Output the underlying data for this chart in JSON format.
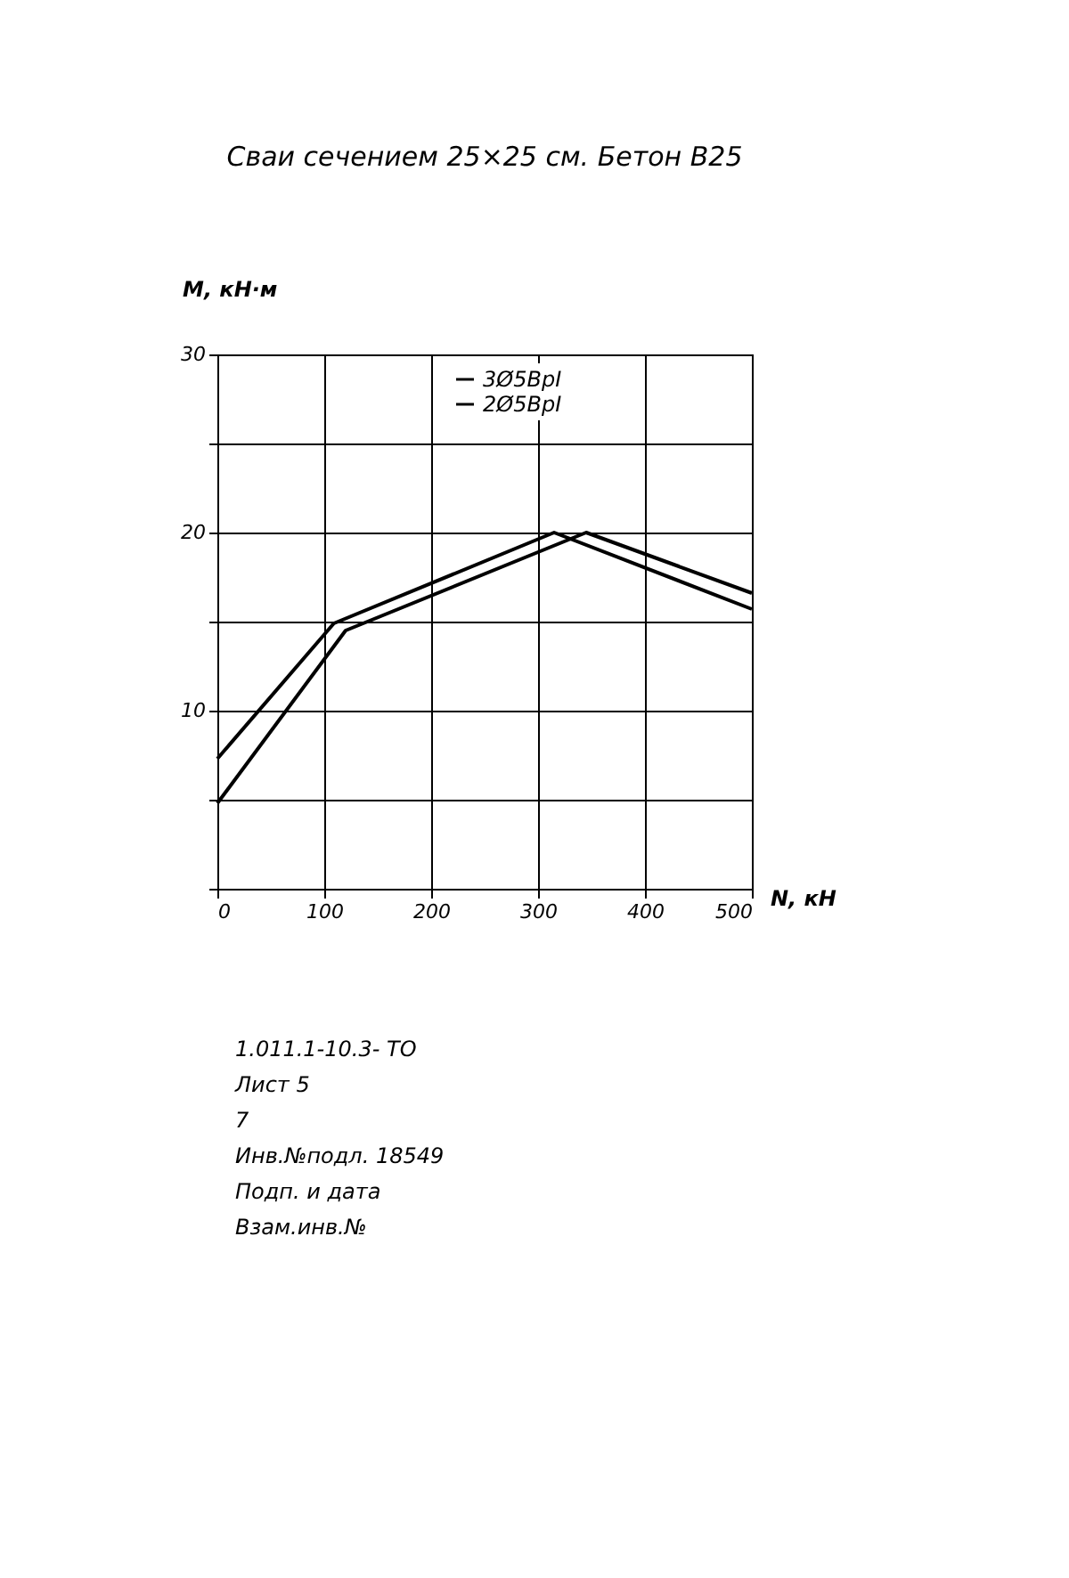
{
  "chart_data": {
    "type": "line",
    "title": "Сваи сечением 25×25 см. Бетон В25",
    "xlabel": "N, кН",
    "ylabel": "M, кН·м",
    "series": [
      {
        "name": "3Ø5ВрI",
        "color": "#000000",
        "x": [
          0,
          109,
          315,
          500
        ],
        "values": [
          7.3,
          14.9,
          20.0,
          15.7
        ]
      },
      {
        "name": "2Ø5ВрI",
        "color": "#000000",
        "x": [
          0,
          120,
          345,
          500
        ],
        "values": [
          4.8,
          14.5,
          20.0,
          16.6
        ]
      }
    ],
    "xlim": [
      0,
      500
    ],
    "xticks": [
      0,
      100,
      200,
      300,
      400,
      500
    ],
    "ylim": [
      0,
      30
    ],
    "yticks": [
      {
        "value": 0,
        "label": null
      },
      {
        "value": 5,
        "label": null
      },
      10,
      {
        "value": 15,
        "label": null
      },
      20,
      {
        "value": 25,
        "label": null
      },
      30
    ],
    "grid": true,
    "legend": "top",
    "marker": "none",
    "line_style": "solid",
    "annotations": [
      "1.011.1-10.3- ТО",
      "Лист 5",
      "7",
      "Инв.№подл. 18549",
      "Подп. и дата",
      "Взам.инв.№"
    ]
  }
}
